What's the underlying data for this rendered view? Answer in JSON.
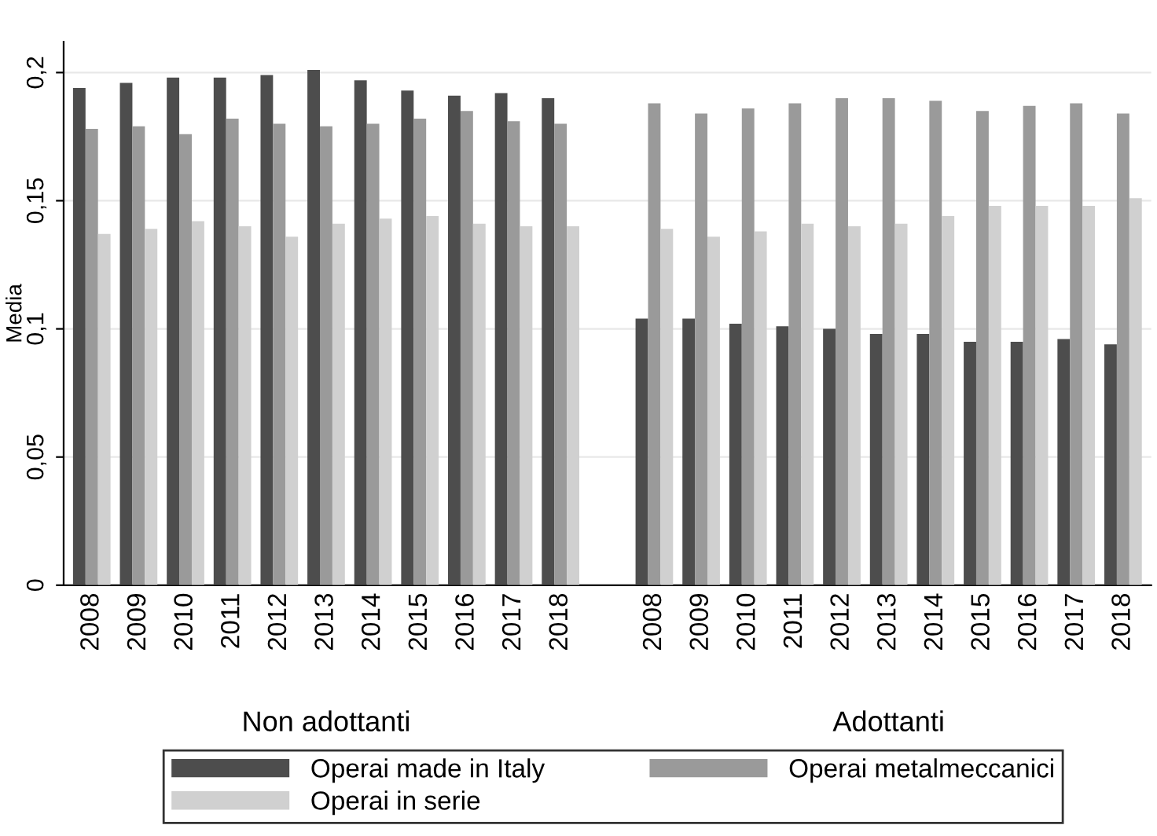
{
  "chart_data": {
    "type": "bar",
    "ylabel": "Media",
    "categories": [
      "2008",
      "2009",
      "2010",
      "2011",
      "2012",
      "2013",
      "2014",
      "2015",
      "2016",
      "2017",
      "2018",
      null,
      "2008",
      "2009",
      "2010",
      "2011",
      "2012",
      "2013",
      "2014",
      "2015",
      "2016",
      "2017",
      "2018"
    ],
    "series": [
      {
        "name": "Operai made in Italy",
        "color": "#4d4d4d",
        "values": [
          0.194,
          0.196,
          0.198,
          0.198,
          0.199,
          0.201,
          0.197,
          0.193,
          0.191,
          0.192,
          0.19,
          null,
          0.104,
          0.104,
          0.102,
          0.101,
          0.1,
          0.098,
          0.098,
          0.095,
          0.095,
          0.096,
          0.094
        ]
      },
      {
        "name": "Operai metalmeccanici",
        "color": "#9a9a9a",
        "values": [
          0.178,
          0.179,
          0.176,
          0.182,
          0.18,
          0.179,
          0.18,
          0.182,
          0.185,
          0.181,
          0.18,
          null,
          0.188,
          0.184,
          0.186,
          0.188,
          0.19,
          0.19,
          0.189,
          0.185,
          0.187,
          0.188,
          0.184
        ]
      },
      {
        "name": "Operai in serie",
        "color": "#d0d0d0",
        "values": [
          0.137,
          0.139,
          0.142,
          0.14,
          0.136,
          0.141,
          0.143,
          0.144,
          0.141,
          0.14,
          0.14,
          null,
          0.139,
          0.136,
          0.138,
          0.141,
          0.14,
          0.141,
          0.144,
          0.148,
          0.148,
          0.148,
          0.151
        ]
      }
    ],
    "ylim": [
      0,
      0.212
    ],
    "yticks": [
      {
        "value": 0,
        "label": "0"
      },
      {
        "value": 0.05,
        "label": "0,05"
      },
      {
        "value": 0.1,
        "label": "0,1"
      },
      {
        "value": 0.15,
        "label": "0,15"
      },
      {
        "value": 0.2,
        "label": "0,2"
      }
    ],
    "grid": "y",
    "legend": "bottom",
    "annotations": [
      "Non adottanti",
      "Adottanti"
    ]
  }
}
